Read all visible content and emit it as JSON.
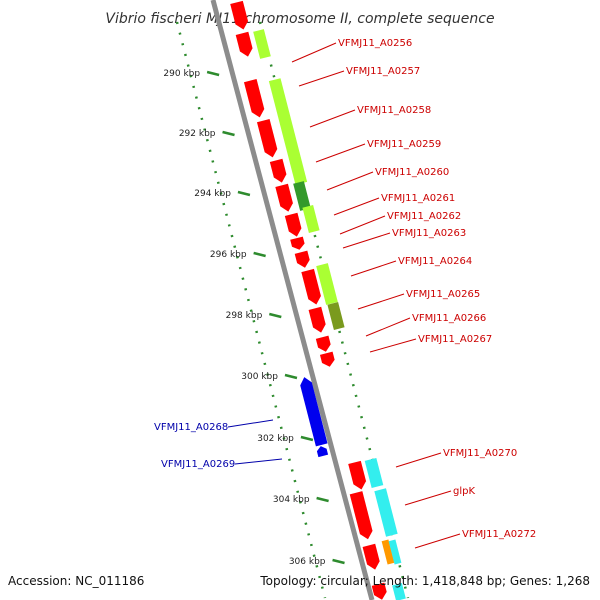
{
  "title": "Vibrio fischeri MJ11 chromosome II, complete sequence",
  "colors": {
    "backbone": "#8c8c8c",
    "tick_dots": "#2e8b2e",
    "forward_cds": "#ff0000",
    "reverse_cds": "#0000ee",
    "label_forward": "#cc0000",
    "label_reverse": "#0000aa",
    "lime": "#aaff33",
    "dark_green": "#33992b",
    "olive": "#7a9a1e",
    "cyan": "#33eeee",
    "orange": "#ff9900"
  },
  "ticks": [
    "290 kbp",
    "292 kbp",
    "294 kbp",
    "296 kbp",
    "298 kbp",
    "300 kbp",
    "302 kbp",
    "304 kbp",
    "306 kbp"
  ],
  "labels": [
    {
      "text": "VFMJ11_A0256",
      "strand": "forward"
    },
    {
      "text": "VFMJ11_A0257",
      "strand": "forward"
    },
    {
      "text": "VFMJ11_A0258",
      "strand": "forward"
    },
    {
      "text": "VFMJ11_A0259",
      "strand": "forward"
    },
    {
      "text": "VFMJ11_A0260",
      "strand": "forward"
    },
    {
      "text": "VFMJ11_A0261",
      "strand": "forward"
    },
    {
      "text": "VFMJ11_A0262",
      "strand": "forward"
    },
    {
      "text": "VFMJ11_A0263",
      "strand": "forward"
    },
    {
      "text": "VFMJ11_A0264",
      "strand": "forward"
    },
    {
      "text": "VFMJ11_A0265",
      "strand": "forward"
    },
    {
      "text": "VFMJ11_A0266",
      "strand": "forward"
    },
    {
      "text": "VFMJ11_A0267",
      "strand": "forward"
    },
    {
      "text": "VFMJ11_A0268",
      "strand": "reverse"
    },
    {
      "text": "VFMJ11_A0269",
      "strand": "reverse"
    },
    {
      "text": "VFMJ11_A0270",
      "strand": "forward"
    },
    {
      "text": "glpK",
      "strand": "forward"
    },
    {
      "text": "VFMJ11_A0272",
      "strand": "forward"
    }
  ],
  "footer": {
    "accession": "Accession: NC_011186",
    "summary": "Topology: circular; Length: 1,418,848 bp; Genes: 1,268"
  }
}
